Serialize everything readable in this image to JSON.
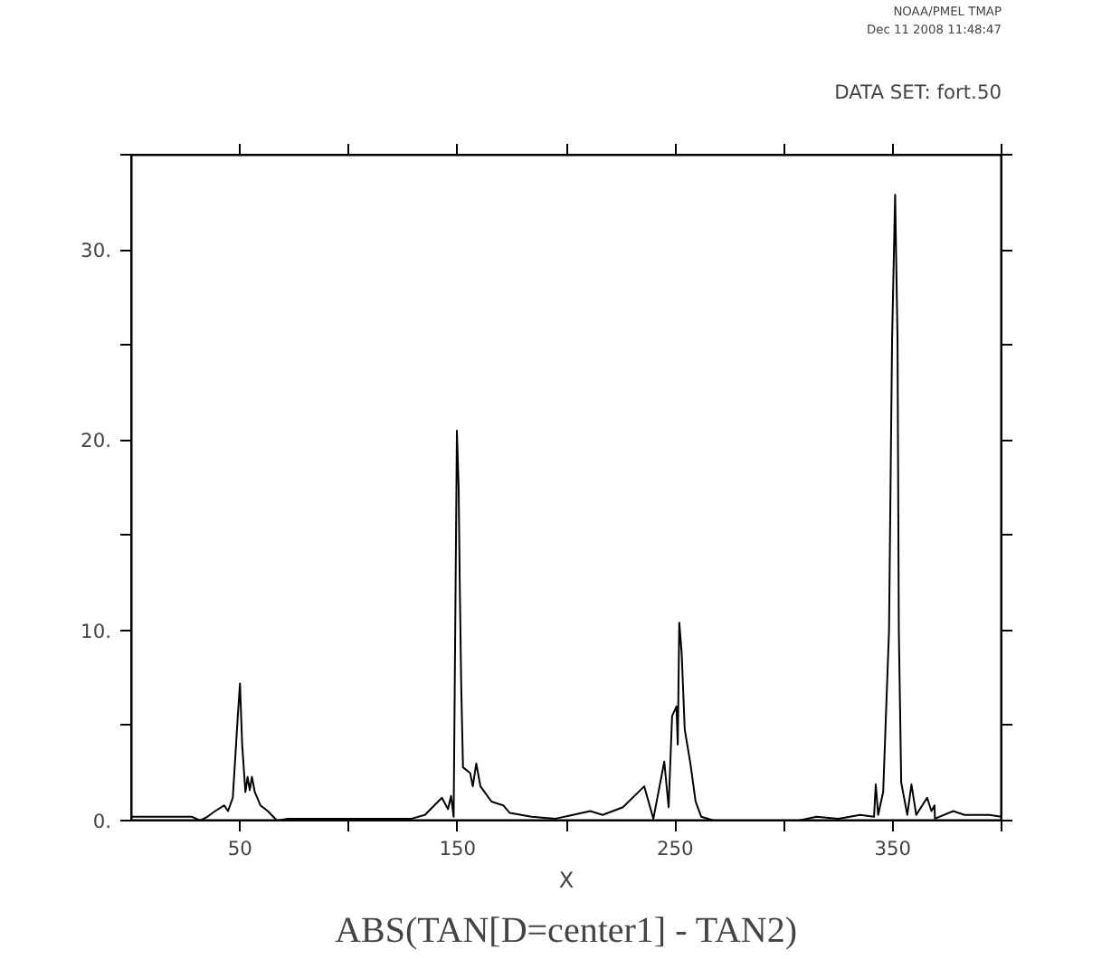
{
  "chart_data": {
    "type": "line",
    "title": "ABS(TAN[D=center1] - TAN2)",
    "xlabel": "X",
    "annotations": [
      "NOAA/PMEL TMAP",
      "Dec 11 2008 11:48:47",
      "DATA SET: fort.50"
    ],
    "x": [
      0,
      10,
      20,
      28,
      31.7,
      35,
      38.6,
      42.8,
      44.5,
      46.7,
      49,
      50,
      51,
      52.5,
      53.5,
      54.5,
      55.5,
      56.8,
      59.4,
      62.8,
      67,
      72,
      80,
      90,
      100,
      110,
      120,
      128.9,
      135,
      142.8,
      145.6,
      147,
      148.2,
      149.7,
      150.5,
      151,
      151.7,
      152.5,
      155.8,
      157,
      158.6,
      160.5,
      165.6,
      171,
      174,
      184,
      195,
      203,
      211,
      216.7,
      226,
      235.8,
      240,
      245,
      247,
      248.6,
      250.6,
      251.2,
      251.9,
      253,
      254.4,
      257,
      259.4,
      262,
      267.8,
      280,
      300,
      306.7,
      315,
      325,
      335,
      341.4,
      342.2,
      343.3,
      345.6,
      348.3,
      349.7,
      351.1,
      352.2,
      352.8,
      353.9,
      356.7,
      358.6,
      360.8,
      365.8,
      367.8,
      369.2,
      369.4,
      377.8,
      383,
      394.4,
      400
    ],
    "series": [
      {
        "color": "#000000",
        "values": [
          0.2,
          0.2,
          0.2,
          0.2,
          0,
          0.2,
          0.5,
          0.8,
          0.5,
          1.2,
          5.5,
          7.2,
          4.0,
          1.5,
          2.3,
          1.6,
          2.3,
          1.5,
          0.8,
          0.5,
          0,
          0.1,
          0.1,
          0.1,
          0.1,
          0.1,
          0.1,
          0.1,
          0.3,
          1.2,
          0.6,
          1.3,
          0.2,
          20.5,
          17.5,
          12.5,
          7.0,
          2.8,
          2.5,
          1.8,
          3.0,
          1.8,
          1.0,
          0.8,
          0.4,
          0.2,
          0.1,
          0.3,
          0.5,
          0.3,
          0.7,
          1.8,
          0.1,
          3.1,
          0.7,
          5.5,
          6.0,
          4.0,
          10.4,
          8.8,
          4.8,
          3.0,
          1.0,
          0.2,
          0,
          0,
          0,
          0,
          0.2,
          0.1,
          0.3,
          0.2,
          1.9,
          0.3,
          1.5,
          10.0,
          25.3,
          32.9,
          25.3,
          10.0,
          2.0,
          0.3,
          1.9,
          0.3,
          1.2,
          0.5,
          0.8,
          0.1,
          0.5,
          0.3,
          0.3,
          0.2
        ]
      }
    ],
    "xlim": [
      0,
      400
    ],
    "ylim": [
      0,
      35
    ],
    "xticks": [
      50,
      {
        "value": 100,
        "label": null
      },
      150,
      {
        "value": 200,
        "label": null
      },
      250,
      {
        "value": 300,
        "label": null
      },
      350,
      {
        "value": 400,
        "label": null
      }
    ],
    "yticks": [
      {
        "value": 0,
        "label": "0."
      },
      {
        "value": 5,
        "label": null
      },
      {
        "value": 10,
        "label": "10."
      },
      {
        "value": 15,
        "label": null
      },
      {
        "value": 20,
        "label": "20."
      },
      {
        "value": 25,
        "label": null
      },
      {
        "value": 30,
        "label": "30."
      },
      {
        "value": 35,
        "label": null
      }
    ],
    "line_style": "solid"
  }
}
